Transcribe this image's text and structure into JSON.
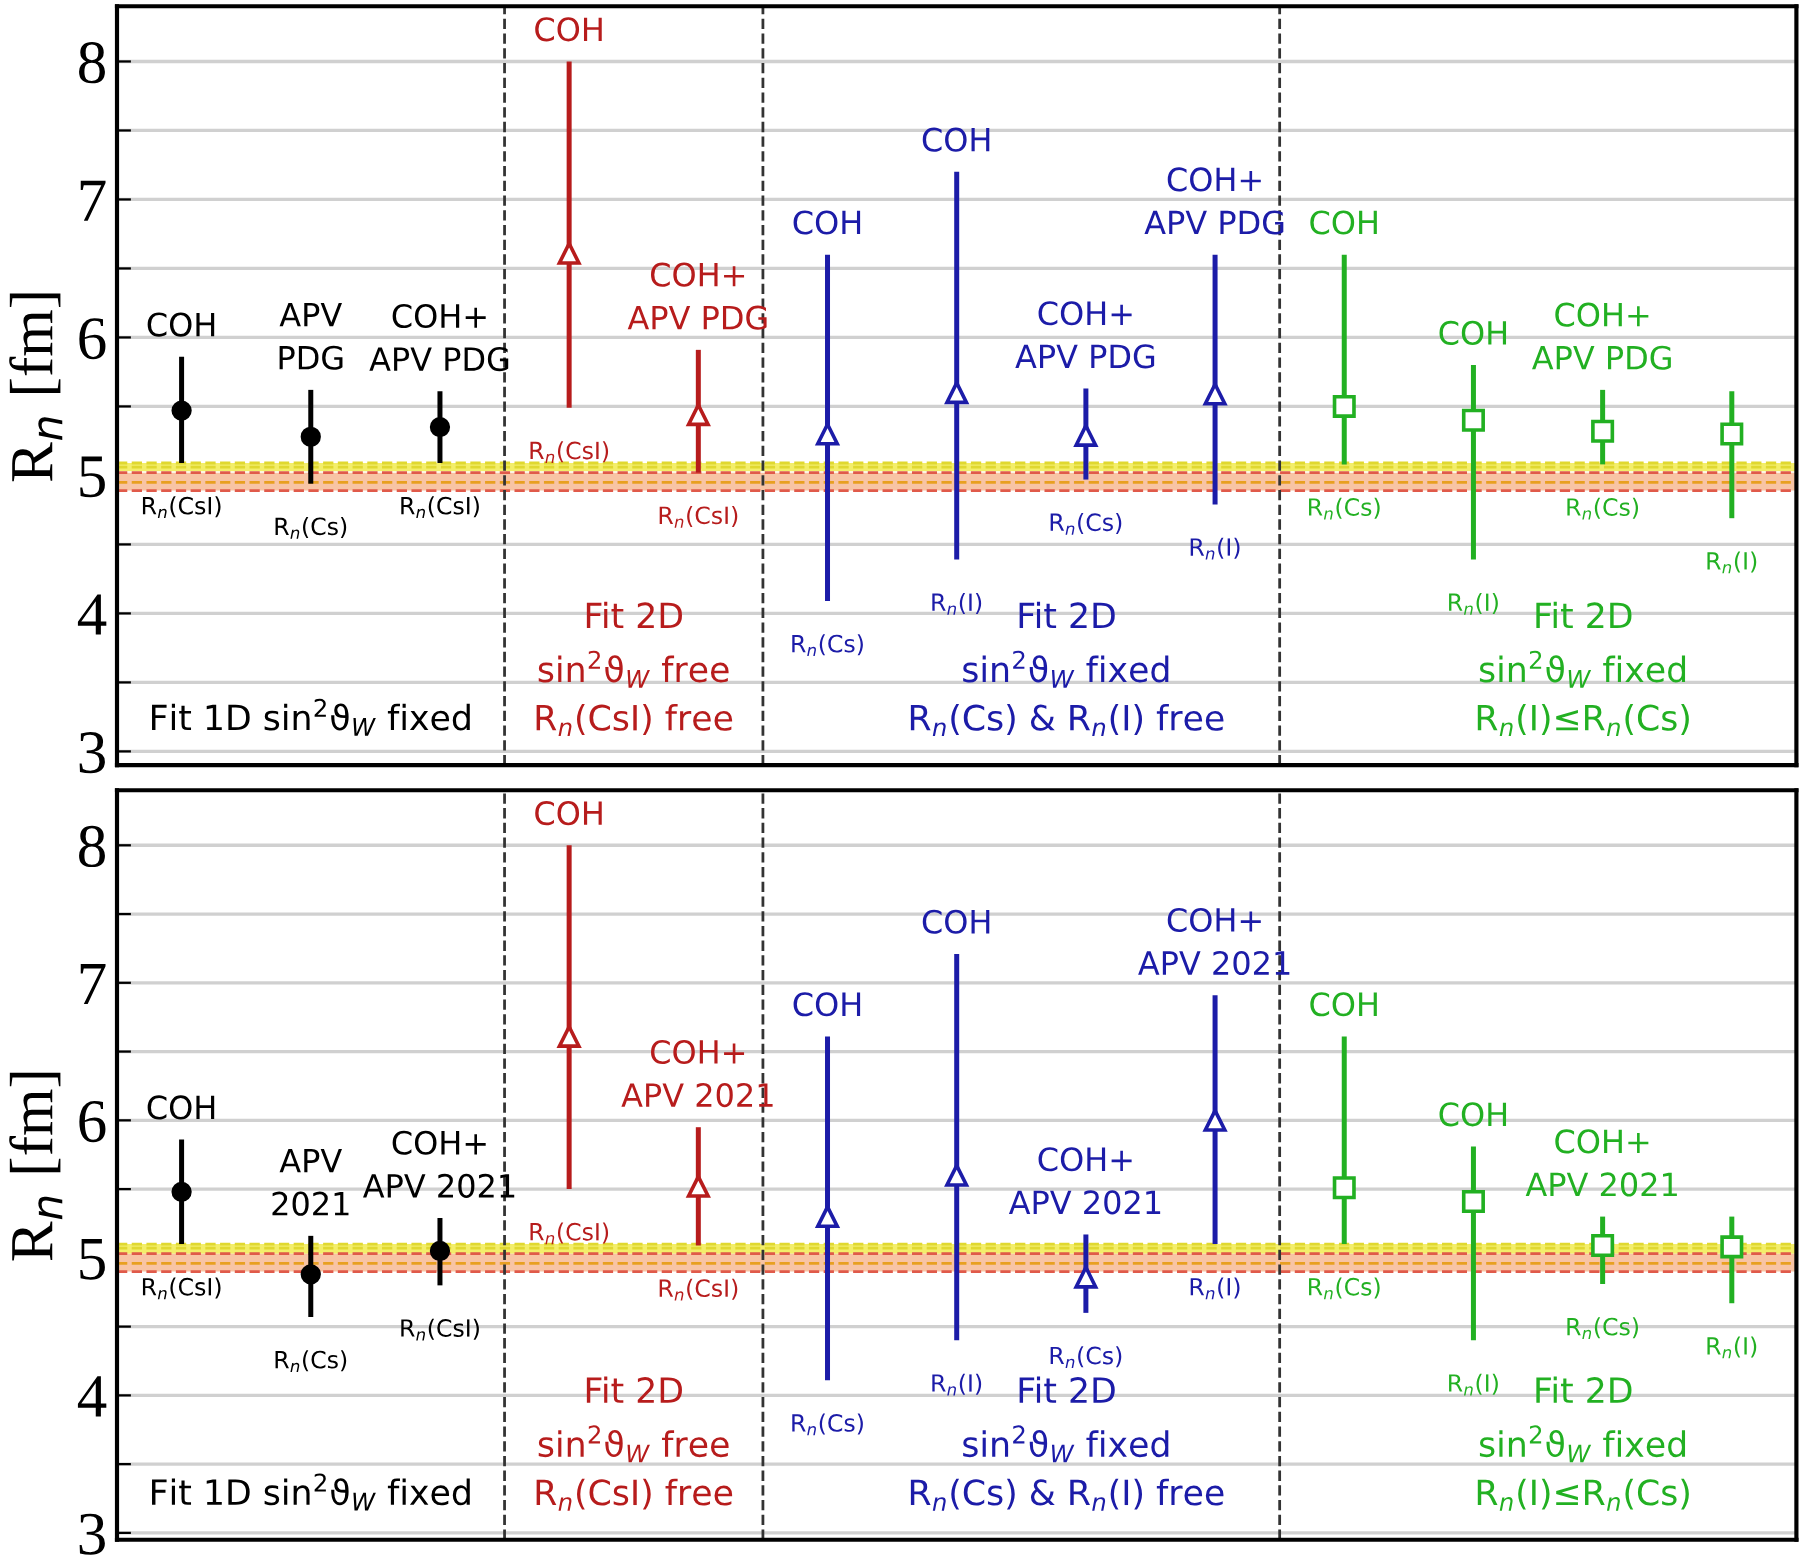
{
  "chart_data": [
    {
      "type": "scatter",
      "ylabel": "R$_{n}$ [fm]",
      "categories": [
        null,
        null,
        null,
        null,
        null,
        null,
        null,
        null,
        null,
        null,
        null,
        null,
        null
      ],
      "ylim": [
        2.9,
        8.4
      ],
      "yticks": [
        3,
        {
          "value": 3.5,
          "label": null
        },
        4,
        {
          "value": 4.5,
          "label": null
        },
        5,
        {
          "value": 5.5,
          "label": null
        },
        6,
        {
          "value": 6.5,
          "label": null
        },
        7,
        {
          "value": 7.5,
          "label": null
        },
        8
      ],
      "grid": "y",
      "tick_labels": "y",
      "series": [
        {
          "color": "#000000",
          "marker": "circle",
          "values": [
            5.47,
            5.28,
            5.35,
            null,
            null,
            null,
            null,
            null,
            null,
            null,
            null,
            null,
            null
          ],
          "errors": [
            [
              5.09,
              5.86
            ],
            [
              4.94,
              5.62
            ],
            [
              5.09,
              5.61
            ],
            null,
            null,
            null,
            null,
            null,
            null,
            null,
            null,
            null,
            null
          ]
        },
        {
          "color": "#b71c1c",
          "marker": "triangle",
          "values": [
            null,
            null,
            null,
            6.61,
            5.44,
            null,
            null,
            null,
            null,
            null,
            null,
            null,
            null
          ],
          "errors": [
            null,
            null,
            null,
            [
              5.49,
              8.0
            ],
            [
              5.02,
              5.91
            ],
            null,
            null,
            null,
            null,
            null,
            null,
            null,
            null
          ]
        },
        {
          "color": "#1c1ca8",
          "marker": "triangle",
          "values": [
            null,
            null,
            null,
            null,
            null,
            5.3,
            5.6,
            5.29,
            5.59,
            null,
            null,
            null,
            null
          ],
          "errors": [
            null,
            null,
            null,
            null,
            null,
            [
              4.09,
              6.6
            ],
            [
              4.39,
              7.2
            ],
            [
              4.97,
              5.63
            ],
            [
              4.79,
              6.6
            ],
            null,
            null,
            null,
            null
          ]
        },
        {
          "color": "#22b022",
          "marker": "square",
          "values": [
            null,
            null,
            null,
            null,
            null,
            null,
            null,
            null,
            null,
            5.5,
            5.4,
            5.32,
            5.3
          ],
          "errors": [
            null,
            null,
            null,
            null,
            null,
            null,
            null,
            null,
            null,
            [
              5.08,
              6.6
            ],
            [
              4.39,
              5.8
            ],
            [
              5.08,
              5.62
            ],
            [
              4.69,
              5.61
            ]
          ]
        }
      ],
      "bands": [
        {
          "axis": "y",
          "from": 5.03,
          "to": 5.09,
          "color": "#f3ee6a"
        },
        {
          "axis": "y",
          "from": 4.89,
          "to": 5.02,
          "color": "#f8c4a4"
        }
      ],
      "ref_lines": [
        {
          "axis": "y",
          "value": 5.09,
          "color": "#e0d830",
          "line_style": "dashed"
        },
        {
          "axis": "y",
          "value": 5.06,
          "color": "#e0d830",
          "line_style": "dashed"
        },
        {
          "axis": "y",
          "value": 5.02,
          "color": "#e05a4a",
          "line_style": "dashed"
        },
        {
          "axis": "y",
          "value": 4.95,
          "color": "#e8a020",
          "line_style": "dashed"
        },
        {
          "axis": "y",
          "value": 4.89,
          "color": "#e05a4a",
          "line_style": "dashed"
        }
      ],
      "annotations": [
        {
          "text": "COH",
          "y": 5.86
        },
        {
          "text": "R$_{n}$(CsI)",
          "y": 5.09
        },
        {
          "text": "APV\nPDG",
          "y": 5.62
        },
        {
          "text": "R$_{n}$(Cs)",
          "y": 4.94
        },
        {
          "text": "COH+\nAPV PDG",
          "y": 5.61
        },
        {
          "text": "R$_{n}$(CsI)",
          "y": 5.09
        },
        {
          "text": "COH",
          "y": 8.0
        },
        {
          "text": "R$_{n}$(CsI)",
          "y": 5.49
        },
        {
          "text": "COH+\nAPV PDG",
          "y": 5.91
        },
        {
          "text": "R$_{n}$(CsI)",
          "y": 5.02
        },
        {
          "text": "COH",
          "y": 6.6
        },
        {
          "text": "R$_{n}$(Cs)",
          "y": 4.09
        },
        {
          "text": "COH",
          "y": 7.2
        },
        {
          "text": "R$_{n}$(I)",
          "y": 4.39
        },
        {
          "text": "COH+\nAPV PDG",
          "y": 5.63
        },
        {
          "text": "R$_{n}$(Cs)",
          "y": 4.97
        },
        {
          "text": "COH+\nAPV PDG",
          "y": 6.6
        },
        {
          "text": "R$_{n}$(I)",
          "y": 4.79
        },
        {
          "text": "COH",
          "y": 6.6
        },
        {
          "text": "R$_{n}$(Cs)",
          "y": 5.08
        },
        {
          "text": "COH",
          "y": 5.8
        },
        {
          "text": "R$_{n}$(I)",
          "y": 4.39
        },
        {
          "text": "COH+\nAPV PDG",
          "y": 5.62
        },
        {
          "text": "R$_{n}$(Cs)",
          "y": 5.08
        },
        {
          "text": "R$_{n}$(I)",
          "y": 4.69
        },
        "Fit 1D sin$^{2}$ϑ$_{W}$ fixed",
        "Fit 2D\nsin$^{2}$ϑ$_{W}$ free\nR$_{n}$(CsI) free",
        "Fit 2D\nsin$^{2}$ϑ$_{W}$ fixed\nR$_{n}$(Cs) & R$_{n}$(I) free",
        "Fit 2D\nsin$^{2}$ϑ$_{W}$ fixed\nR$_{n}$(I)≤R$_{n}$(Cs)"
      ]
    },
    {
      "type": "scatter",
      "ylabel": "R$_{n}$ [fm]",
      "categories": [
        null,
        null,
        null,
        null,
        null,
        null,
        null,
        null,
        null,
        null,
        null,
        null,
        null
      ],
      "ylim": [
        2.95,
        8.4
      ],
      "yticks": [
        3,
        {
          "value": 3.5,
          "label": null
        },
        4,
        {
          "value": 4.5,
          "label": null
        },
        5,
        {
          "value": 5.5,
          "label": null
        },
        6,
        {
          "value": 6.5,
          "label": null
        },
        7,
        {
          "value": 7.5,
          "label": null
        },
        8
      ],
      "grid": "y",
      "tick_labels": "y",
      "series": [
        {
          "color": "#000000",
          "marker": "circle",
          "values": [
            5.48,
            4.88,
            5.05,
            null,
            null,
            null,
            null,
            null,
            null,
            null,
            null,
            null,
            null
          ],
          "errors": [
            [
              5.1,
              5.86
            ],
            [
              4.57,
              5.16
            ],
            [
              4.8,
              5.29
            ],
            null,
            null,
            null,
            null,
            null,
            null,
            null,
            null,
            null,
            null
          ]
        },
        {
          "color": "#b71c1c",
          "marker": "triangle",
          "values": [
            null,
            null,
            null,
            6.61,
            5.52,
            null,
            null,
            null,
            null,
            null,
            null,
            null,
            null
          ],
          "errors": [
            null,
            null,
            null,
            [
              5.5,
              8.0
            ],
            [
              5.09,
              5.95
            ],
            null,
            null,
            null,
            null,
            null,
            null,
            null,
            null
          ]
        },
        {
          "color": "#1c1ca8",
          "marker": "triangle",
          "values": [
            null,
            null,
            null,
            null,
            null,
            5.3,
            5.6,
            4.86,
            6.0,
            null,
            null,
            null,
            null
          ],
          "errors": [
            null,
            null,
            null,
            null,
            null,
            [
              4.11,
              6.61
            ],
            [
              4.4,
              7.21
            ],
            [
              4.6,
              5.17
            ],
            [
              5.1,
              6.91
            ],
            null,
            null,
            null,
            null
          ]
        },
        {
          "color": "#22b022",
          "marker": "square",
          "values": [
            null,
            null,
            null,
            null,
            null,
            null,
            null,
            null,
            null,
            5.51,
            5.41,
            5.09,
            5.08
          ],
          "errors": [
            null,
            null,
            null,
            null,
            null,
            null,
            null,
            null,
            null,
            [
              5.1,
              6.61
            ],
            [
              4.4,
              5.81
            ],
            [
              4.81,
              5.3
            ],
            [
              4.67,
              5.3
            ]
          ]
        }
      ],
      "bands": [
        {
          "axis": "y",
          "from": 5.03,
          "to": 5.1,
          "color": "#f3ee6a"
        },
        {
          "axis": "y",
          "from": 4.9,
          "to": 5.03,
          "color": "#f8c4a4"
        }
      ],
      "ref_lines": [
        {
          "axis": "y",
          "value": 5.1,
          "color": "#e0d830",
          "line_style": "dashed"
        },
        {
          "axis": "y",
          "value": 5.07,
          "color": "#e0d830",
          "line_style": "dashed"
        },
        {
          "axis": "y",
          "value": 5.03,
          "color": "#e05a4a",
          "line_style": "dashed"
        },
        {
          "axis": "y",
          "value": 4.96,
          "color": "#e8a020",
          "line_style": "dashed"
        },
        {
          "axis": "y",
          "value": 4.9,
          "color": "#e05a4a",
          "line_style": "dashed"
        }
      ],
      "annotations": [
        {
          "text": "COH",
          "y": 5.86
        },
        {
          "text": "R$_{n}$(CsI)",
          "y": 5.1
        },
        {
          "text": "APV\n2021",
          "y": 5.16
        },
        {
          "text": "R$_{n}$(Cs)",
          "y": 4.57
        },
        {
          "text": "COH+\nAPV 2021",
          "y": 5.29
        },
        {
          "text": "R$_{n}$(CsI)",
          "y": 4.8
        },
        {
          "text": "COH",
          "y": 8.0
        },
        {
          "text": "R$_{n}$(CsI)",
          "y": 5.5
        },
        {
          "text": "COH+\nAPV 2021",
          "y": 5.95
        },
        {
          "text": "R$_{n}$(CsI)",
          "y": 5.09
        },
        {
          "text": "COH",
          "y": 6.61
        },
        {
          "text": "R$_{n}$(Cs)",
          "y": 4.11
        },
        {
          "text": "COH",
          "y": 7.21
        },
        {
          "text": "R$_{n}$(I)",
          "y": 4.4
        },
        {
          "text": "COH+\nAPV 2021",
          "y": 5.17
        },
        {
          "text": "R$_{n}$(Cs)",
          "y": 4.6
        },
        {
          "text": "COH+\nAPV 2021",
          "y": 6.91
        },
        {
          "text": "R$_{n}$(I)",
          "y": 5.1
        },
        {
          "text": "COH",
          "y": 6.61
        },
        {
          "text": "R$_{n}$(Cs)",
          "y": 5.1
        },
        {
          "text": "COH",
          "y": 5.81
        },
        {
          "text": "R$_{n}$(I)",
          "y": 4.4
        },
        {
          "text": "COH+\nAPV 2021",
          "y": 5.3
        },
        {
          "text": "R$_{n}$(Cs)",
          "y": 4.81
        },
        {
          "text": "R$_{n}$(I)",
          "y": 4.67
        },
        "Fit 1D sin$^{2}$ϑ$_{W}$ fixed",
        "Fit 2D\nsin$^{2}$ϑ$_{W}$ free\nR$_{n}$(CsI) free",
        "Fit 2D\nsin$^{2}$ϑ$_{W}$ fixed\nR$_{n}$(Cs) & R$_{n}$(I) free",
        "Fit 2D\nsin$^{2}$ϑ$_{W}$ fixed\nR$_{n}$(I)≤R$_{n}$(Cs)"
      ]
    }
  ]
}
